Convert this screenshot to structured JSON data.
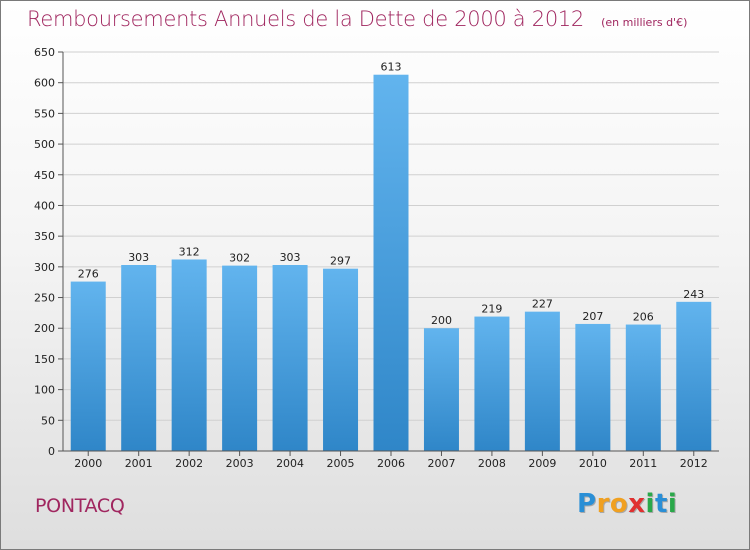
{
  "title": "Remboursements Annuels de la Dette de 2000 à 2012",
  "unit_note": "(en milliers d'€)",
  "commune": "PONTACQ",
  "logo": {
    "letters": [
      "P",
      "r",
      "o",
      "x",
      "i",
      "t",
      "i"
    ],
    "colors": [
      "#2a8fd6",
      "#f0a020",
      "#f0a020",
      "#e03030",
      "#2aa84a",
      "#2a8fd6",
      "#2aa84a"
    ]
  },
  "colors": {
    "bar_top": "#62b4ee",
    "bar_bottom": "#2f86c8",
    "accent": "#a0265f",
    "grid": "#d0d0d0"
  },
  "chart_data": {
    "type": "bar",
    "title": "Remboursements Annuels de la Dette de 2000 à 2012",
    "xlabel": "",
    "ylabel": "",
    "categories": [
      "2000",
      "2001",
      "2002",
      "2003",
      "2004",
      "2005",
      "2006",
      "2007",
      "2008",
      "2009",
      "2010",
      "2011",
      "2012"
    ],
    "values": [
      276,
      303,
      312,
      302,
      303,
      297,
      613,
      200,
      219,
      227,
      207,
      206,
      243
    ],
    "ylim": [
      0,
      650
    ],
    "yticks": [
      0,
      50,
      100,
      150,
      200,
      250,
      300,
      350,
      400,
      450,
      500,
      550,
      600,
      650
    ],
    "grid": true
  }
}
